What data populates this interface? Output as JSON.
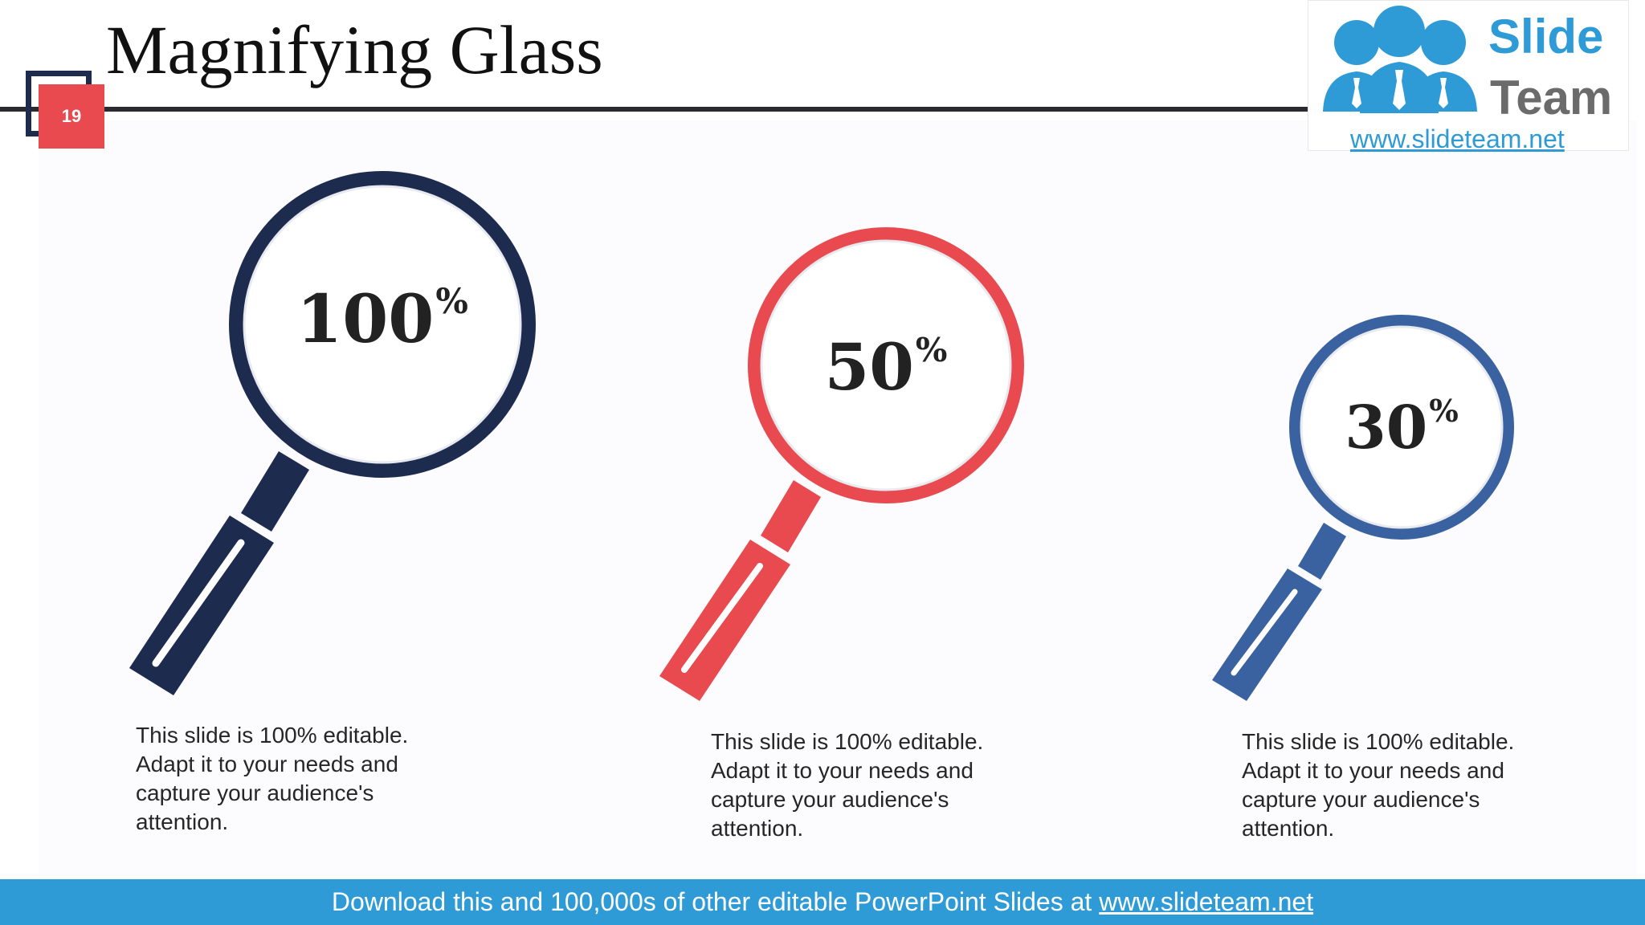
{
  "slide": {
    "title": "Magnifying Glass",
    "number": "19"
  },
  "logo": {
    "word_top": "Slide",
    "word_bottom": "Team",
    "url": "www.slideteam.net"
  },
  "magnifiers": [
    {
      "value": "100",
      "unit": "%",
      "color": "#1d2b4f",
      "text": "This slide is 100% editable. Adapt it to your needs and capture your audience's attention."
    },
    {
      "value": "50",
      "unit": "%",
      "color": "#e94a4f",
      "text": "This slide is 100% editable. Adapt it to your needs and capture your audience's attention."
    },
    {
      "value": "30",
      "unit": "%",
      "color": "#3a62a0",
      "text": "This slide is 100% editable. Adapt it to your needs and capture your audience's attention."
    }
  ],
  "footer": {
    "text": "Download this and 100,000s of other editable PowerPoint Slides at",
    "link": "www.slideteam.net"
  },
  "colors": {
    "navy": "#1d2b4f",
    "red": "#e94a4f",
    "blue": "#3a62a0",
    "brand_blue": "#2e9bd6"
  }
}
